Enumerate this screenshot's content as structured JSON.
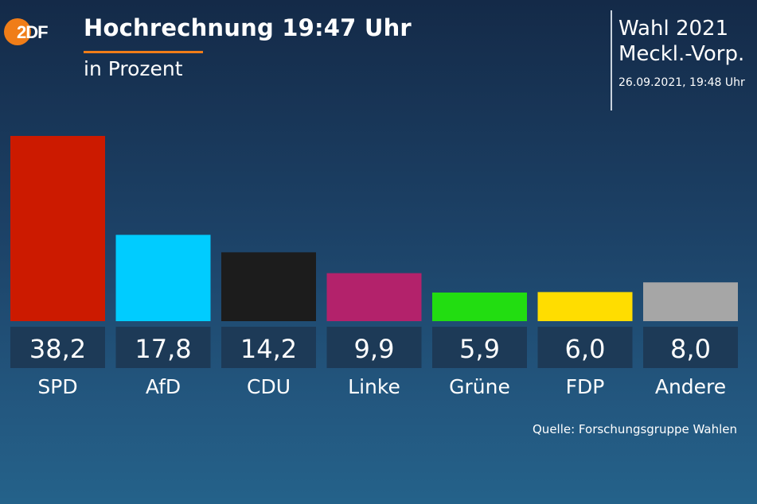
{
  "header": {
    "logo_text": "2DF",
    "title": "Hochrechnung 19:47 Uhr",
    "subtitle": "in Prozent",
    "election_line1": "Wahl 2021",
    "election_line2": "Meckl.-Vorp.",
    "timestamp": "26.09.2021, 19:48 Uhr",
    "accent_color": "#f07d18"
  },
  "footer": {
    "source": "Quelle: Forschungsgruppe Wahlen"
  },
  "chart_data": {
    "type": "bar",
    "categories": [
      "SPD",
      "AfD",
      "CDU",
      "Linke",
      "Grüne",
      "FDP",
      "Andere"
    ],
    "values": [
      38.2,
      17.8,
      14.2,
      9.9,
      5.9,
      6.0,
      8.0
    ],
    "value_labels": [
      "38,2",
      "17,8",
      "14,2",
      "9,9",
      "5,9",
      "6,0",
      "8,0"
    ],
    "colors": [
      "#cc1a00",
      "#00ccff",
      "#1c1c1c",
      "#b3226b",
      "#22dd11",
      "#ffdd00",
      "#a6a6a6"
    ],
    "label_box_color": "#1d3a57",
    "title": "Hochrechnung 19:47 Uhr",
    "ylabel": "",
    "xlabel": "",
    "ylim": [
      0,
      38.2
    ],
    "grid": false,
    "legend": "none"
  }
}
